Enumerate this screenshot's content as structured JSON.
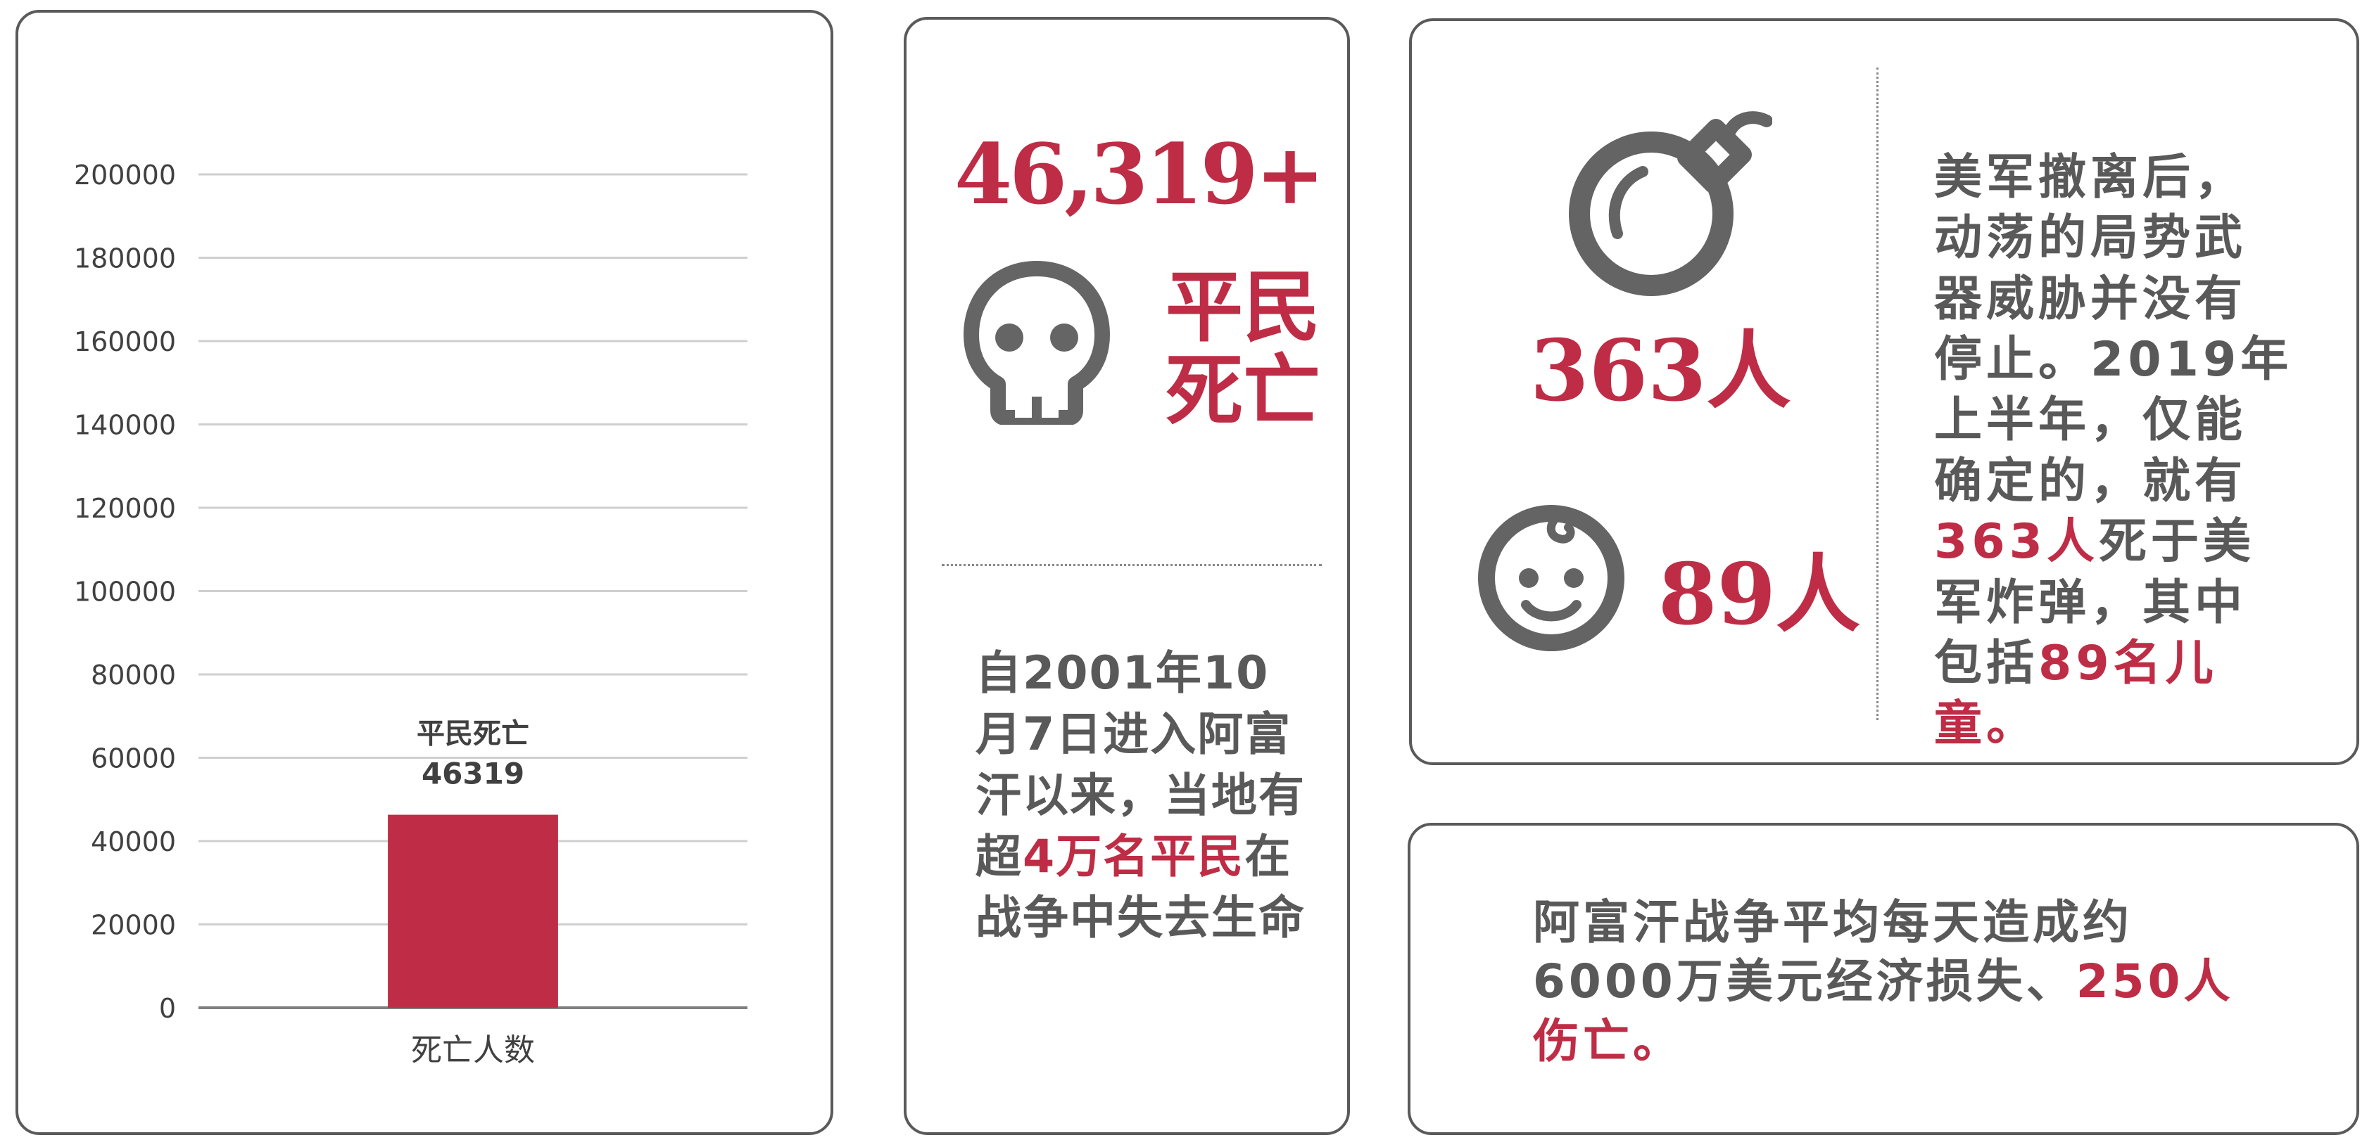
{
  "chart_data": {
    "type": "bar",
    "categories": [
      "死亡人数"
    ],
    "series": [
      {
        "name": "平民死亡",
        "values": [
          46319
        ]
      }
    ],
    "data_labels": [
      "平民死亡",
      "46319"
    ],
    "ylim": [
      0,
      200000
    ],
    "yticks": [
      "0",
      "20000",
      "40000",
      "60000",
      "80000",
      "100000",
      "120000",
      "140000",
      "160000",
      "180000",
      "200000"
    ],
    "grid": true,
    "colors": {
      "bar": "#be2d45"
    }
  },
  "civilian": {
    "count": "46,319+",
    "label_line1": "平民",
    "label_line2": "死亡",
    "icon": "skull-icon",
    "desc_before": "自2001年10月7日进入阿富汗以来，当地有超",
    "desc_highlight": "4万名平民",
    "desc_after": "在战争中失去生命"
  },
  "bombs": {
    "deaths": "363人",
    "children": "89人",
    "bomb_icon": "bomb-icon",
    "child_icon": "baby-face-icon",
    "text_part1": "美军撤离后，动荡的局势武器威胁并没有停止。2019年上半年，仅能确定的，就有",
    "text_hl1": "363人",
    "text_part2": "死于美军炸弹，其中包括",
    "text_hl2": "89名儿童。"
  },
  "economy": {
    "text_part1": "阿富汗战争平均每天造成约6000万美元经济损失、",
    "text_hl": "250人伤亡。"
  },
  "colors": {
    "accent": "#be2d45",
    "text": "#595959",
    "border": "#5a5a5a"
  }
}
